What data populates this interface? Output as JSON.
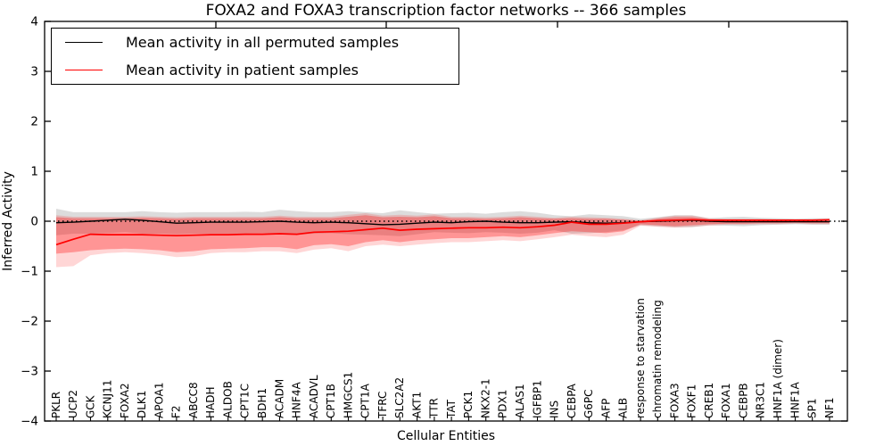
{
  "chart_data": {
    "type": "line",
    "title": "FOXA2 and FOXA3 transcription factor networks -- 366 samples",
    "xlabel": "Cellular Entities",
    "ylabel": "Inferred Activity",
    "ylim": [
      -4,
      4
    ],
    "yticks": [
      4,
      3,
      2,
      1,
      0,
      -1,
      -2,
      -3,
      -4
    ],
    "grid": false,
    "legend_position": "upper left",
    "categories": [
      "PKLR",
      "UCP2",
      "GCK",
      "KCNJ11",
      "FOXA2",
      "DLK1",
      "APOA1",
      "F2",
      "ABCC8",
      "HADH",
      "ALDOB",
      "CPT1C",
      "BDH1",
      "ACADM",
      "HNF4A",
      "ACADVL",
      "CPT1B",
      "HMGCS1",
      "CPT1A",
      "TFRC",
      "SLC2A2",
      "AKT1",
      "TTR",
      "TAT",
      "PCK1",
      "NKX2-1",
      "PDX1",
      "ALAS1",
      "IGFBP1",
      "INS",
      "CEBPA",
      "G6PC",
      "AFP",
      "ALB",
      "response to starvation",
      "chromatin remodeling",
      "FOXA3",
      "FOXF1",
      "CREB1",
      "FOXA1",
      "CEBPB",
      "NR3C1",
      "HNF1A (dimer)",
      "HNF1A",
      "SP1",
      "NF1"
    ],
    "series": [
      {
        "name": "Mean activity in all permuted samples",
        "color": "#000000",
        "style": "solid",
        "values": [
          -0.03,
          -0.02,
          0.0,
          0.02,
          0.04,
          0.02,
          -0.01,
          -0.04,
          -0.03,
          -0.02,
          -0.02,
          -0.02,
          -0.01,
          0.0,
          -0.02,
          -0.03,
          -0.02,
          -0.03,
          -0.05,
          -0.07,
          -0.06,
          -0.04,
          -0.02,
          -0.03,
          -0.01,
          0.0,
          -0.02,
          -0.03,
          -0.03,
          -0.02,
          -0.01,
          -0.03,
          -0.04,
          -0.03,
          -0.01,
          0.0,
          0.01,
          0.02,
          0.0,
          -0.01,
          -0.01,
          -0.01,
          -0.01,
          -0.01,
          -0.01,
          -0.01
        ]
      },
      {
        "name": "Mean activity in patient samples",
        "color": "#ff0000",
        "style": "solid",
        "values": [
          -0.47,
          -0.36,
          -0.26,
          -0.27,
          -0.27,
          -0.27,
          -0.28,
          -0.29,
          -0.28,
          -0.27,
          -0.27,
          -0.26,
          -0.26,
          -0.25,
          -0.26,
          -0.22,
          -0.21,
          -0.2,
          -0.17,
          -0.14,
          -0.18,
          -0.16,
          -0.15,
          -0.14,
          -0.13,
          -0.13,
          -0.12,
          -0.13,
          -0.11,
          -0.08,
          -0.02,
          -0.06,
          -0.06,
          -0.04,
          -0.01,
          0.01,
          0.02,
          0.03,
          0.02,
          0.02,
          0.02,
          0.02,
          0.02,
          0.02,
          0.02,
          0.03
        ]
      }
    ],
    "bands": [
      {
        "name": "permuted-samples-range",
        "color": "#808080",
        "opacity": 0.28,
        "upper": [
          0.25,
          0.18,
          0.18,
          0.18,
          0.18,
          0.2,
          0.18,
          0.17,
          0.18,
          0.18,
          0.18,
          0.19,
          0.18,
          0.23,
          0.2,
          0.18,
          0.18,
          0.2,
          0.18,
          0.16,
          0.22,
          0.18,
          0.15,
          0.16,
          0.17,
          0.15,
          0.18,
          0.2,
          0.17,
          0.12,
          0.1,
          0.14,
          0.12,
          0.1,
          0.05,
          0.08,
          0.12,
          0.12,
          0.06,
          0.08,
          0.09,
          0.07,
          0.06,
          0.05,
          0.06,
          0.06
        ],
        "lower": [
          -0.28,
          -0.25,
          -0.25,
          -0.24,
          -0.22,
          -0.25,
          -0.25,
          -0.26,
          -0.25,
          -0.25,
          -0.25,
          -0.25,
          -0.24,
          -0.25,
          -0.27,
          -0.25,
          -0.24,
          -0.26,
          -0.27,
          -0.28,
          -0.3,
          -0.26,
          -0.22,
          -0.23,
          -0.24,
          -0.22,
          -0.23,
          -0.25,
          -0.23,
          -0.18,
          -0.25,
          -0.24,
          -0.22,
          -0.18,
          -0.08,
          -0.1,
          -0.12,
          -0.12,
          -0.08,
          -0.09,
          -0.1,
          -0.08,
          -0.07,
          -0.06,
          -0.07,
          -0.07
        ]
      },
      {
        "name": "patient-samples-outer-range",
        "color": "#ff0000",
        "opacity": 0.16,
        "upper": [
          0.12,
          0.09,
          0.09,
          0.09,
          0.09,
          0.1,
          0.09,
          0.08,
          0.09,
          0.09,
          0.09,
          0.09,
          0.09,
          0.11,
          0.09,
          0.09,
          0.09,
          0.13,
          0.16,
          0.11,
          0.13,
          0.11,
          0.14,
          0.09,
          0.09,
          0.08,
          0.09,
          0.11,
          0.09,
          0.07,
          0.09,
          0.08,
          0.07,
          0.05,
          0.02,
          0.07,
          0.11,
          0.11,
          0.06,
          0.05,
          0.05,
          0.05,
          0.04,
          0.04,
          0.04,
          0.04
        ],
        "lower": [
          -0.92,
          -0.9,
          -0.68,
          -0.64,
          -0.62,
          -0.64,
          -0.67,
          -0.72,
          -0.7,
          -0.64,
          -0.62,
          -0.62,
          -0.6,
          -0.6,
          -0.64,
          -0.57,
          -0.54,
          -0.6,
          -0.5,
          -0.47,
          -0.5,
          -0.47,
          -0.44,
          -0.42,
          -0.42,
          -0.4,
          -0.38,
          -0.4,
          -0.36,
          -0.32,
          -0.27,
          -0.3,
          -0.32,
          -0.27,
          -0.09,
          -0.11,
          -0.13,
          -0.11,
          -0.09,
          -0.07,
          -0.07,
          -0.06,
          -0.06,
          -0.05,
          -0.06,
          -0.06
        ]
      },
      {
        "name": "patient-samples-inner-range",
        "color": "#ff0000",
        "opacity": 0.3,
        "upper": [
          0.08,
          0.06,
          0.06,
          0.06,
          0.06,
          0.07,
          0.06,
          0.05,
          0.06,
          0.06,
          0.06,
          0.06,
          0.06,
          0.08,
          0.06,
          0.06,
          0.06,
          0.09,
          0.12,
          0.08,
          0.09,
          0.08,
          0.1,
          0.06,
          0.06,
          0.05,
          0.06,
          0.08,
          0.06,
          0.05,
          0.06,
          0.05,
          0.05,
          0.03,
          0.01,
          0.05,
          0.08,
          0.08,
          0.04,
          0.03,
          0.03,
          0.03,
          0.03,
          0.03,
          0.03,
          0.03
        ],
        "lower": [
          -0.65,
          -0.62,
          -0.58,
          -0.56,
          -0.55,
          -0.56,
          -0.58,
          -0.62,
          -0.6,
          -0.56,
          -0.55,
          -0.54,
          -0.52,
          -0.52,
          -0.56,
          -0.48,
          -0.46,
          -0.5,
          -0.42,
          -0.38,
          -0.42,
          -0.38,
          -0.36,
          -0.34,
          -0.34,
          -0.32,
          -0.3,
          -0.32,
          -0.28,
          -0.24,
          -0.2,
          -0.22,
          -0.24,
          -0.2,
          -0.06,
          -0.08,
          -0.1,
          -0.08,
          -0.06,
          -0.05,
          -0.05,
          -0.04,
          -0.04,
          -0.03,
          -0.04,
          -0.04
        ]
      }
    ],
    "zero_line": {
      "style": "dotted",
      "color": "#000000",
      "y": 0
    }
  }
}
